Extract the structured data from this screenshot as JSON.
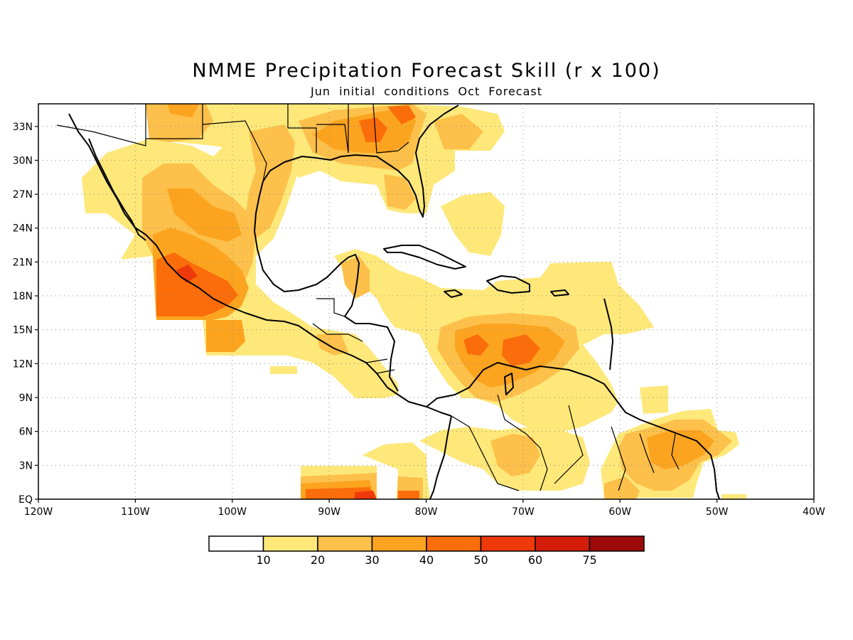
{
  "title": "NMME Precipitation Forecast Skill (r x 100)",
  "subtitle": "Jun initial conditions  Oct Forecast",
  "map": {
    "region": {
      "lon": [
        -120,
        -40
      ],
      "lat": [
        0,
        35
      ]
    },
    "lon_ticks": [
      "120W",
      "110W",
      "100W",
      "90W",
      "80W",
      "70W",
      "60W",
      "50W",
      "40W"
    ],
    "lat_ticks": [
      "EQ",
      "3N",
      "6N",
      "9N",
      "12N",
      "15N",
      "18N",
      "21N",
      "24N",
      "27N",
      "30N",
      "33N"
    ],
    "grid": "dotted"
  },
  "legend": {
    "labels": [
      "10",
      "20",
      "30",
      "40",
      "50",
      "60",
      "75"
    ],
    "colors": [
      "#ffffff",
      "#fee87a",
      "#fdc04a",
      "#fca41f",
      "#fb6d0a",
      "#ee3a0a",
      "#d41c0a",
      "#9c0a0a"
    ]
  }
}
